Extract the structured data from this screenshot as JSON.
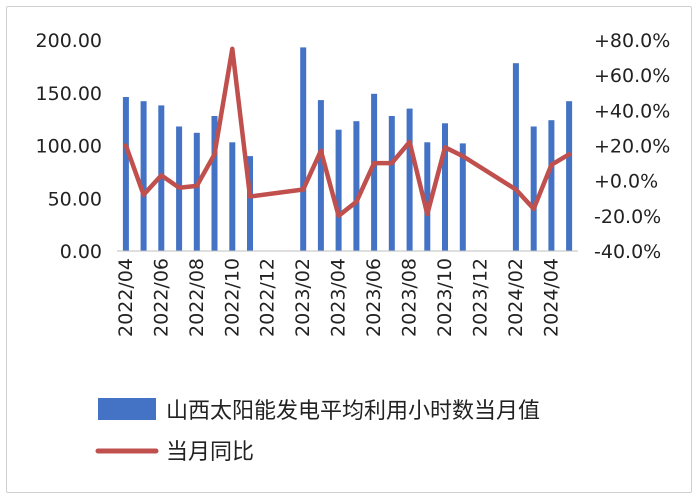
{
  "chart_data": {
    "type": "bar+line",
    "title": "",
    "x": [
      "2022/04",
      "2022/05",
      "2022/06",
      "2022/07",
      "2022/08",
      "2022/09",
      "2022/10",
      "2022/11",
      "2022/12",
      "2023/01",
      "2023/02",
      "2023/03",
      "2023/04",
      "2023/05",
      "2023/06",
      "2023/07",
      "2023/08",
      "2023/09",
      "2023/10",
      "2023/11",
      "2023/12",
      "2024/01",
      "2024/02",
      "2024/03",
      "2024/04",
      "2024/05"
    ],
    "x_tick_labels": [
      "2022/04",
      "2022/06",
      "2022/08",
      "2022/10",
      "2022/12",
      "2023/02",
      "2023/04",
      "2023/06",
      "2023/08",
      "2023/10",
      "2023/12",
      "2024/02",
      "2024/04"
    ],
    "y_left": {
      "ylim": [
        0,
        200
      ],
      "ticks": [
        "0.00",
        "50.00",
        "100.00",
        "150.00",
        "200.00"
      ]
    },
    "y_right": {
      "ylim": [
        -40,
        80
      ],
      "unit": "%",
      "ticks": [
        "-40.0%",
        "-20.0%",
        "+0.0%",
        "+20.0%",
        "+40.0%",
        "+60.0%",
        "+80.0%"
      ]
    },
    "series": [
      {
        "name": "山西太阳能发电平均利用小时数当月值",
        "kind": "bar",
        "axis": "left",
        "color": "#4472C4",
        "values": [
          146,
          142,
          138,
          118,
          112,
          128,
          103,
          90,
          null,
          null,
          193,
          143,
          115,
          123,
          149,
          128,
          135,
          103,
          121,
          102,
          null,
          null,
          178,
          118,
          124,
          142
        ]
      },
      {
        "name": "当月同比",
        "kind": "line",
        "axis": "right",
        "color": "#C0504D",
        "values": [
          20,
          -8,
          3,
          -4,
          -3,
          15,
          75,
          -9,
          null,
          null,
          -5,
          17,
          -20,
          -12,
          10,
          10,
          22,
          -19,
          19,
          14,
          null,
          null,
          -5,
          -16,
          9,
          15
        ]
      }
    ],
    "legend_position": "bottom",
    "grid": false
  }
}
